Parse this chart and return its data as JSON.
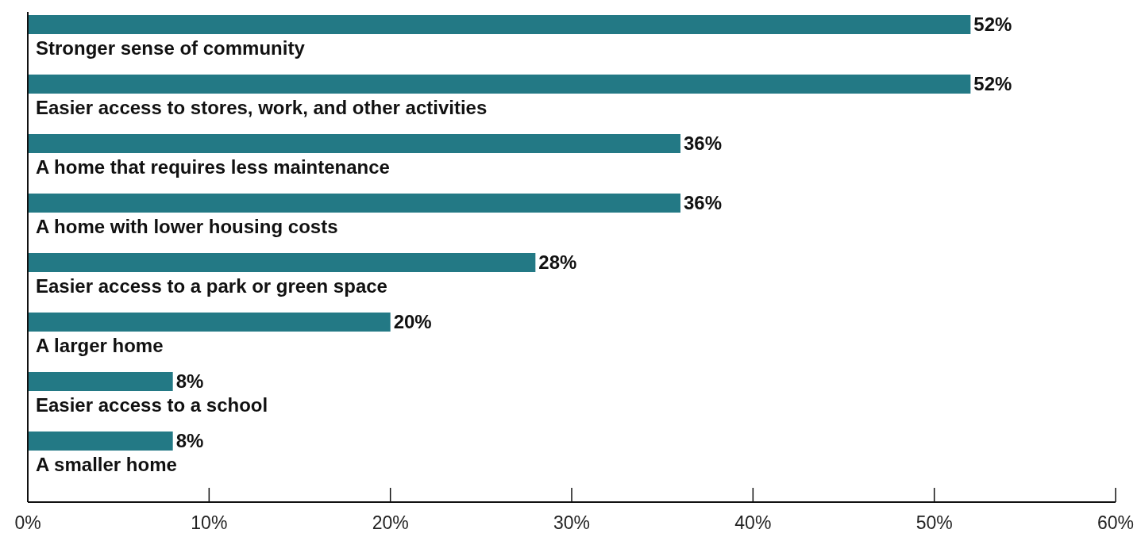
{
  "chart_data": {
    "type": "bar",
    "orientation": "horizontal",
    "categories": [
      "Stronger sense of community",
      "Easier access to stores, work, and other activities",
      "A home that requires less maintenance",
      "A home with lower housing costs",
      "Easier access to a park or green space",
      "A larger home",
      "Easier access to a school",
      "A smaller home"
    ],
    "values": [
      52,
      52,
      36,
      36,
      28,
      20,
      8,
      8
    ],
    "value_labels": [
      "52%",
      "52%",
      "36%",
      "36%",
      "28%",
      "20%",
      "8%",
      "8%"
    ],
    "color": "#237985",
    "xlim": [
      0,
      60
    ],
    "xticks": [
      {
        "value": 0,
        "label": "0%"
      },
      {
        "value": 10,
        "label": "10%"
      },
      {
        "value": 20,
        "label": "20%"
      },
      {
        "value": 30,
        "label": "30%"
      },
      {
        "value": 40,
        "label": "40%"
      },
      {
        "value": 50,
        "label": "50%"
      },
      {
        "value": 60,
        "label": "60%"
      }
    ],
    "grid": false
  }
}
